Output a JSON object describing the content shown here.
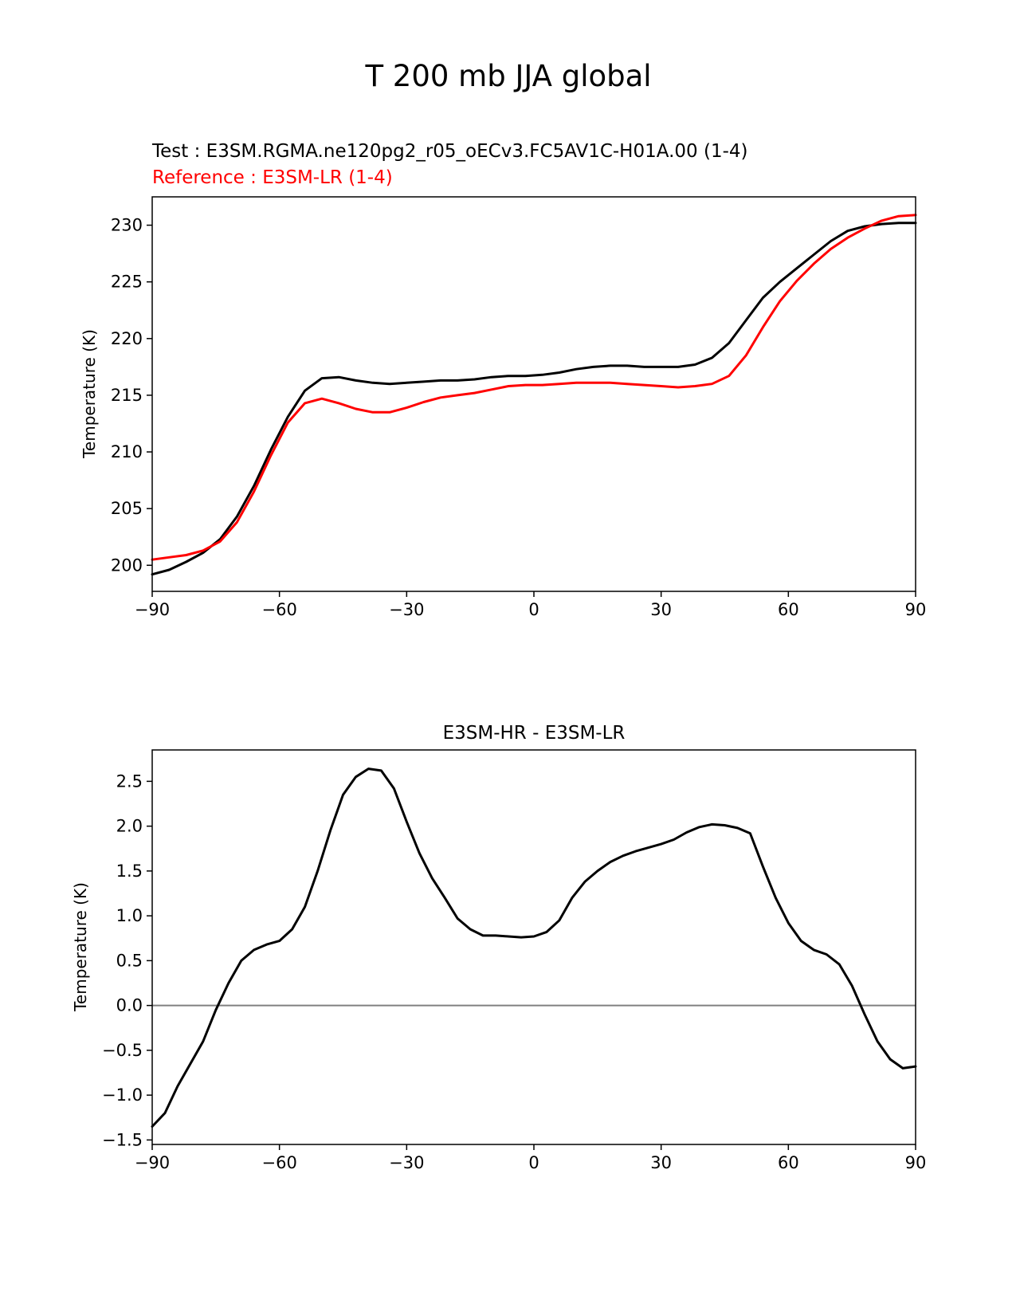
{
  "figure": {
    "title": "T 200 mb JJA global"
  },
  "chart_data": [
    {
      "type": "line",
      "title_lines": [
        {
          "text": "Test : E3SM.RGMA.ne120pg2_r05_oECv3.FC5AV1C-H01A.00 (1-4)",
          "color": "#000000"
        },
        {
          "text": "Reference : E3SM-LR (1-4)",
          "color": "#ff0000"
        }
      ],
      "xlabel": "",
      "ylabel": "Temperature (K)",
      "xlim": [
        -90,
        90
      ],
      "ylim": [
        197.7,
        232.5
      ],
      "xticks": [
        -90,
        -60,
        -30,
        0,
        30,
        60,
        90
      ],
      "xtick_labels": [
        "−90",
        "−60",
        "−30",
        "0",
        "30",
        "60",
        "90"
      ],
      "yticks": [
        200,
        205,
        210,
        215,
        220,
        225,
        230
      ],
      "ytick_labels": [
        "200",
        "205",
        "210",
        "215",
        "220",
        "225",
        "230"
      ],
      "grid": false,
      "x": [
        -90,
        -86,
        -82,
        -78,
        -74,
        -70,
        -66,
        -62,
        -58,
        -54,
        -50,
        -46,
        -42,
        -38,
        -34,
        -30,
        -26,
        -22,
        -18,
        -14,
        -10,
        -6,
        -2,
        2,
        6,
        10,
        14,
        18,
        22,
        26,
        30,
        34,
        38,
        42,
        46,
        50,
        54,
        58,
        62,
        66,
        70,
        74,
        78,
        82,
        86,
        90
      ],
      "series": [
        {
          "color": "#000000",
          "values": [
            199.2,
            199.6,
            200.3,
            201.1,
            202.3,
            204.3,
            207.0,
            210.2,
            213.1,
            215.4,
            216.5,
            216.6,
            216.3,
            216.1,
            216.0,
            216.1,
            216.2,
            216.3,
            216.3,
            216.4,
            216.6,
            216.7,
            216.7,
            216.8,
            217.0,
            217.3,
            217.5,
            217.6,
            217.6,
            217.5,
            217.5,
            217.5,
            217.7,
            218.3,
            219.6,
            221.6,
            223.6,
            225.0,
            226.2,
            227.4,
            228.6,
            229.5,
            229.9,
            230.1,
            230.2,
            230.2
          ]
        },
        {
          "color": "#ff0000",
          "values": [
            200.5,
            200.7,
            200.9,
            201.3,
            202.1,
            203.8,
            206.5,
            209.7,
            212.6,
            214.3,
            214.7,
            214.3,
            213.8,
            213.5,
            213.5,
            213.9,
            214.4,
            214.8,
            215.0,
            215.2,
            215.5,
            215.8,
            215.9,
            215.9,
            216.0,
            216.1,
            216.1,
            216.1,
            216.0,
            215.9,
            215.8,
            215.7,
            215.8,
            216.0,
            216.7,
            218.5,
            221.0,
            223.3,
            225.1,
            226.6,
            227.9,
            228.9,
            229.7,
            230.4,
            230.8,
            230.9
          ]
        }
      ]
    },
    {
      "type": "line",
      "title": "E3SM-HR - E3SM-LR",
      "xlabel": "",
      "ylabel": "Temperature (K)",
      "xlim": [
        -90,
        90
      ],
      "ylim": [
        -1.55,
        2.85
      ],
      "xticks": [
        -90,
        -60,
        -30,
        0,
        30,
        60,
        90
      ],
      "xtick_labels": [
        "−90",
        "−60",
        "−30",
        "0",
        "30",
        "60",
        "90"
      ],
      "yticks": [
        -1.5,
        -1.0,
        -0.5,
        0.0,
        0.5,
        1.0,
        1.5,
        2.0,
        2.5
      ],
      "ytick_labels": [
        "−1.5",
        "−1.0",
        "−0.5",
        "0.0",
        "0.5",
        "1.0",
        "1.5",
        "2.0",
        "2.5"
      ],
      "grid": false,
      "reference_line": {
        "y": 0.0,
        "color": "#808080"
      },
      "x": [
        -90,
        -87,
        -84,
        -81,
        -78,
        -75,
        -72,
        -69,
        -66,
        -63,
        -60,
        -57,
        -54,
        -51,
        -48,
        -45,
        -42,
        -39,
        -36,
        -33,
        -30,
        -27,
        -24,
        -21,
        -18,
        -15,
        -12,
        -9,
        -6,
        -3,
        0,
        3,
        6,
        9,
        12,
        15,
        18,
        21,
        24,
        27,
        30,
        33,
        36,
        39,
        42,
        45,
        48,
        51,
        54,
        57,
        60,
        63,
        66,
        69,
        72,
        75,
        78,
        81,
        84,
        87,
        90
      ],
      "series": [
        {
          "color": "#000000",
          "values": [
            -1.35,
            -1.2,
            -0.9,
            -0.65,
            -0.4,
            -0.05,
            0.25,
            0.5,
            0.62,
            0.68,
            0.72,
            0.85,
            1.1,
            1.5,
            1.95,
            2.35,
            2.55,
            2.64,
            2.62,
            2.42,
            2.05,
            1.7,
            1.42,
            1.2,
            0.97,
            0.85,
            0.78,
            0.78,
            0.77,
            0.76,
            0.77,
            0.82,
            0.95,
            1.2,
            1.38,
            1.5,
            1.6,
            1.67,
            1.72,
            1.76,
            1.8,
            1.85,
            1.93,
            1.99,
            2.02,
            2.01,
            1.98,
            1.92,
            1.55,
            1.2,
            0.92,
            0.72,
            0.62,
            0.57,
            0.46,
            0.22,
            -0.1,
            -0.4,
            -0.6,
            -0.7,
            -0.68
          ]
        }
      ]
    }
  ]
}
